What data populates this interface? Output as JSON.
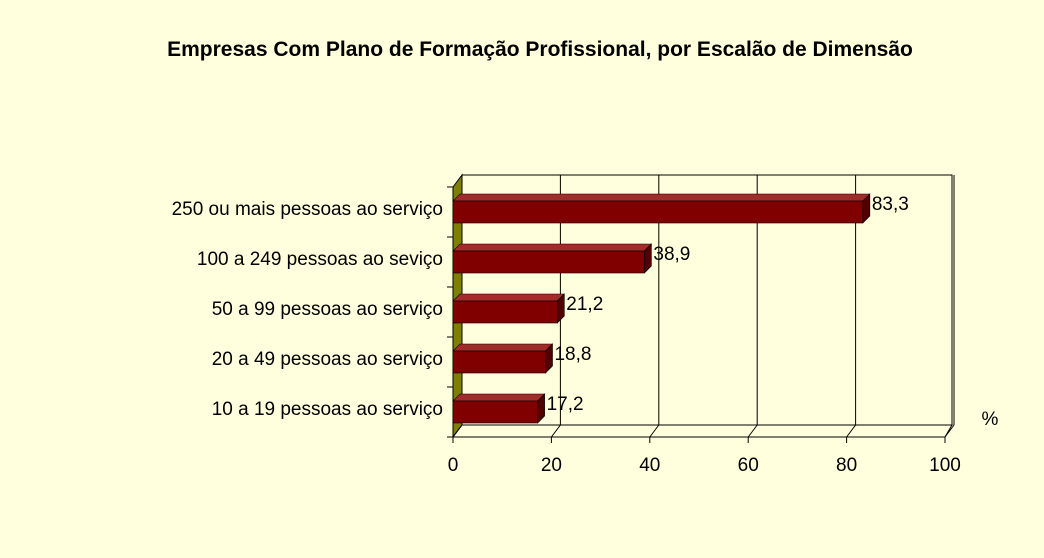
{
  "chart_data": {
    "type": "bar",
    "orientation": "horizontal",
    "title": "Empresas Com Plano de Formação Profissional, por Escalão de Dimensão",
    "x_label": "%",
    "categories": [
      "250 ou mais pessoas ao serviço",
      "100 a 249 pessoas ao seviço",
      "50 a 99 pessoas ao serviço",
      "20 a 49 pessoas ao serviço",
      "10 a 19 pessoas ao serviço"
    ],
    "values": [
      83.3,
      38.9,
      21.2,
      18.8,
      17.2
    ],
    "value_labels": [
      "83,3",
      "38,9",
      "21,2",
      "18,8",
      "17,2"
    ],
    "color": "#800000",
    "xlim": [
      0,
      100
    ],
    "xticks": [
      0,
      20,
      40,
      60,
      80,
      100
    ],
    "grid": true
  }
}
